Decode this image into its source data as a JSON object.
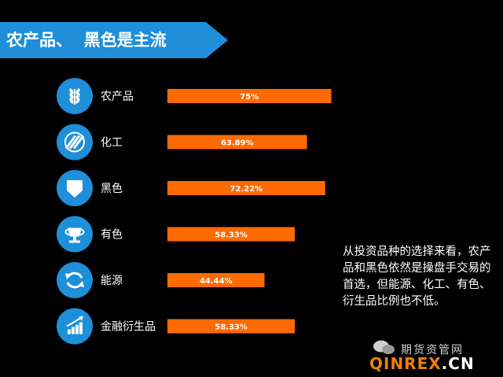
{
  "header": {
    "title": "农产品、  黑色是主流"
  },
  "colors": {
    "bar": "#ff6a00",
    "icon_circle": "#1e8fd8",
    "banner": "#1e8fd8"
  },
  "chart_data": {
    "type": "bar",
    "orientation": "horizontal",
    "categories": [
      "农产品",
      "化工",
      "黑色",
      "有色",
      "能源",
      "金融衍生品"
    ],
    "values": [
      75,
      63.89,
      72.22,
      58.33,
      44.44,
      58.33
    ],
    "value_labels": [
      "75%",
      "63.89%",
      "72.22%",
      "58.33%",
      "44.44%",
      "58.33%"
    ],
    "icons": [
      "wheat-icon",
      "stripes-icon",
      "shield-icon",
      "trophy-icon",
      "refresh-icon",
      "growth-chart-icon"
    ],
    "xlim": [
      0,
      100
    ]
  },
  "note": "从投资品种的选择来看，农产品和黑色依然是操盘手交易的首选，但能源、化工、有色、衍生品比例也不低。",
  "watermark": {
    "cn": "期货资管网",
    "en_main": "QINREX",
    "en_dot": ".",
    "en_tld": "CN"
  }
}
